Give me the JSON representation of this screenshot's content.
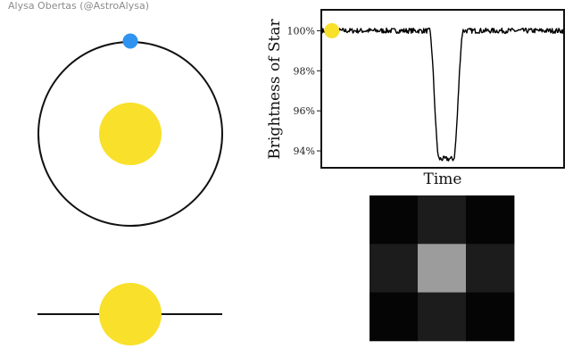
{
  "credit": "Alysa Obertas (@AstroAlysa)",
  "colors": {
    "star": "#f9e02b",
    "planet": "#2f94f0",
    "orbit": "#111111",
    "lightcurve": "#000000",
    "pixel_dark": "#050505",
    "pixel_mid": "#1b1b1b",
    "pixel_bright": "#9b9b9b"
  },
  "diagram": {
    "top_view": {
      "orbit": "circular-orbit",
      "planet_phase": "top-of-orbit"
    },
    "side_view": {
      "orbit": "edge-on-line",
      "planet": "behind-star"
    }
  },
  "chart_data": {
    "type": "line",
    "title": "",
    "xlabel": "Time",
    "ylabel": "Brightness of Star",
    "y_ticks": [
      94,
      96,
      98,
      100
    ],
    "y_tick_labels": [
      "94%",
      "96%",
      "98%",
      "100%"
    ],
    "ylim": [
      93.2,
      101.0
    ],
    "xlim": [
      0,
      100
    ],
    "grid": false,
    "baseline": 100.0,
    "transit_depth": 93.6,
    "transit_ingress": [
      44.5,
      48.5
    ],
    "transit_egress": [
      54.5,
      58.5
    ],
    "current_time_marker": 4,
    "noise_amplitude": 0.13
  },
  "pixel_grid": {
    "rows": 3,
    "cols": 3,
    "levels": [
      [
        0.02,
        0.11,
        0.02
      ],
      [
        0.11,
        0.61,
        0.11
      ],
      [
        0.02,
        0.11,
        0.02
      ]
    ]
  }
}
